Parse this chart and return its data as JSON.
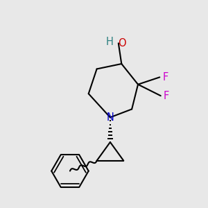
{
  "bg_color": "#e8e8e8",
  "atom_colors": {
    "O": "#cc0000",
    "H_O": "#2d8080",
    "N": "#0000cc",
    "F": "#cc00cc",
    "C": "#000000"
  },
  "bond_color": "#000000",
  "bond_width": 1.5,
  "figsize": [
    3.0,
    3.0
  ],
  "dpi": 100
}
